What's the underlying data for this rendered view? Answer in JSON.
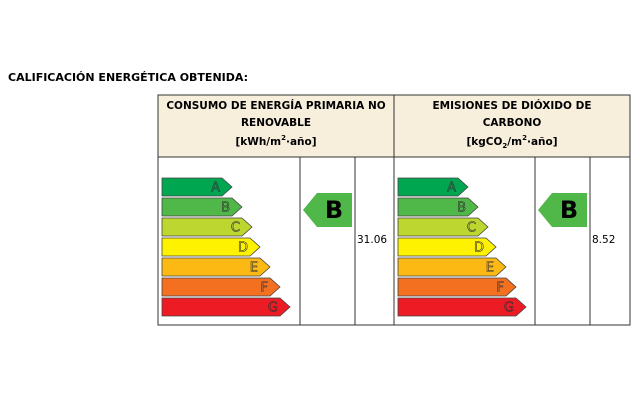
{
  "title": "CALIFICACIÓN ENERGÉTICA OBTENIDA:",
  "scale": [
    {
      "letter": "A",
      "color": "#00a650"
    },
    {
      "letter": "B",
      "color": "#50b848"
    },
    {
      "letter": "C",
      "color": "#bed630"
    },
    {
      "letter": "D",
      "color": "#fff200"
    },
    {
      "letter": "E",
      "color": "#fdb913"
    },
    {
      "letter": "F",
      "color": "#f37021"
    },
    {
      "letter": "G",
      "color": "#ed1c24"
    }
  ],
  "panels": [
    {
      "title": [
        "CONSUMO DE ENERGÍA PRIMARIA NO",
        "RENOVABLE"
      ],
      "unit": [
        "[kWh/m",
        "2",
        "·año]"
      ],
      "rating": "B",
      "value": 31.06
    },
    {
      "title": [
        "EMISIONES DE DIÓXIDO DE",
        "CARBONO"
      ],
      "unit": [
        "[kgCO",
        "2",
        "/m",
        "2",
        "·año]"
      ],
      "rating": "B",
      "value": 8.52
    }
  ]
}
